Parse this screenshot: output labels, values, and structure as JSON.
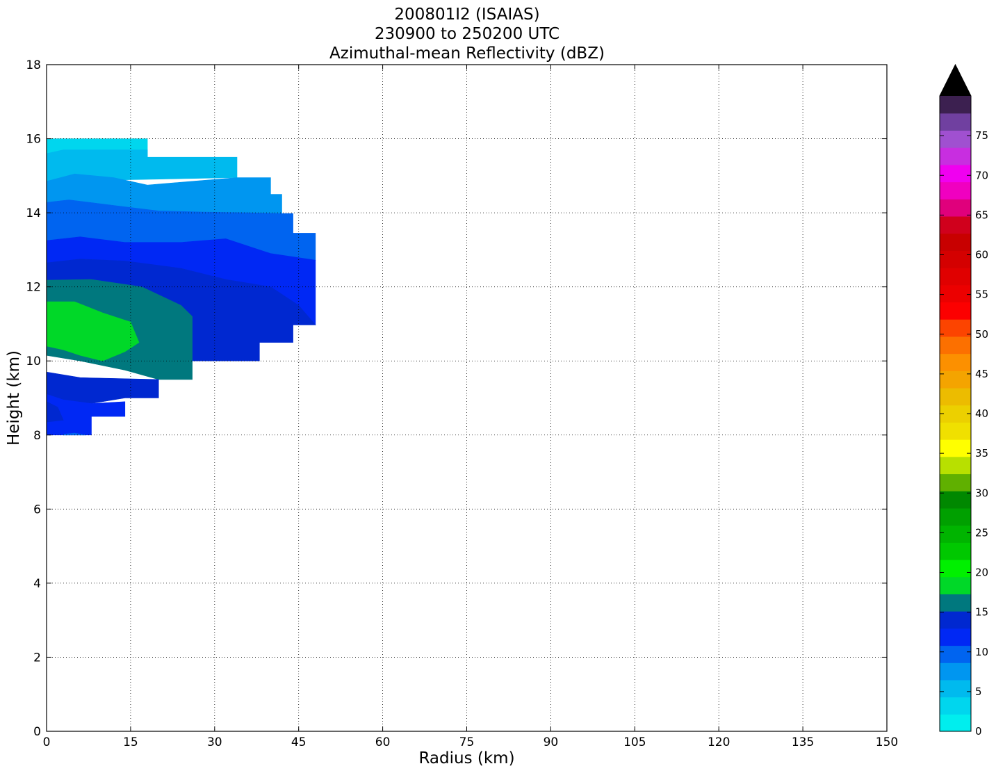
{
  "chart_data": {
    "type": "contour",
    "title_lines": [
      "200801I2 (ISAIAS)",
      "230900 to 250200 UTC",
      "Azimuthal-mean Reflectivity (dBZ)"
    ],
    "xlabel": "Radius (km)",
    "ylabel": "Height (km)",
    "xlim": [
      0,
      150
    ],
    "ylim": [
      0,
      18
    ],
    "xticks": [
      0,
      15,
      30,
      45,
      60,
      75,
      90,
      105,
      120,
      135,
      150
    ],
    "yticks": [
      0,
      2,
      4,
      6,
      8,
      10,
      12,
      14,
      16,
      18
    ],
    "grid": true,
    "colorbar": {
      "min": 0,
      "max": 80,
      "step": 2.5,
      "extend": "max",
      "extend_color": "#000000",
      "tick_labels": [
        "0",
        "5",
        "10",
        "15",
        "20",
        "25",
        "30",
        "35",
        "40",
        "45",
        "50",
        "55",
        "60",
        "65",
        "70",
        "75"
      ],
      "colors": [
        "#00eeee",
        "#00d6ee",
        "#00baee",
        "#0096f0",
        "#0064f0",
        "#0028f4",
        "#0028d0",
        "#00787e",
        "#00d828",
        "#00f000",
        "#00c800",
        "#00b400",
        "#00a000",
        "#008800",
        "#60b000",
        "#b8e000",
        "#ffff00",
        "#f0e000",
        "#ecd000",
        "#ecbc00",
        "#f4a400",
        "#fc9000",
        "#fc7000",
        "#fc4400",
        "#fc0000",
        "#ec0000",
        "#e00000",
        "#d40000",
        "#c80000",
        "#d0001c",
        "#e0007c",
        "#f000c0",
        "#f000f0",
        "#c82ee0",
        "#a050d0",
        "#7040a0",
        "#3c2050"
      ]
    },
    "contour_levels_dbz": [
      {
        "level": 2.5,
        "color": "#00d6ee",
        "polygon": [
          [
            0,
            16
          ],
          [
            18,
            16
          ],
          [
            18,
            15.5
          ],
          [
            0,
            15.5
          ]
        ]
      },
      {
        "level": 5,
        "color": "#00baee",
        "polygon": [
          [
            0,
            15.6
          ],
          [
            3,
            15.7
          ],
          [
            18,
            15.7
          ],
          [
            18,
            15.5
          ],
          [
            34,
            15.5
          ],
          [
            34,
            14.95
          ],
          [
            0,
            14.85
          ]
        ]
      },
      {
        "level": 7.5,
        "color": "#0096f0",
        "polygon": [
          [
            0,
            14.85
          ],
          [
            5,
            15.05
          ],
          [
            12,
            14.95
          ],
          [
            18,
            14.75
          ],
          [
            26,
            14.85
          ],
          [
            34,
            14.95
          ],
          [
            40,
            14.95
          ],
          [
            40,
            14.5
          ],
          [
            42,
            14.5
          ],
          [
            42,
            13.98
          ],
          [
            36,
            14.0
          ],
          [
            28,
            14.02
          ],
          [
            20,
            14.05
          ],
          [
            12,
            14.2
          ],
          [
            4,
            14.35
          ],
          [
            0,
            14.28
          ]
        ]
      },
      {
        "level": 10,
        "color": "#0064f0",
        "polygon": [
          [
            0,
            14.28
          ],
          [
            4,
            14.35
          ],
          [
            12,
            14.2
          ],
          [
            20,
            14.05
          ],
          [
            28,
            14.02
          ],
          [
            36,
            14.0
          ],
          [
            42,
            13.98
          ],
          [
            44,
            13.98
          ],
          [
            44,
            13.45
          ],
          [
            48,
            13.45
          ],
          [
            48,
            12.72
          ],
          [
            40,
            12.9
          ],
          [
            32,
            13.3
          ],
          [
            24,
            13.2
          ],
          [
            14,
            13.2
          ],
          [
            6,
            13.35
          ],
          [
            0,
            13.25
          ]
        ]
      },
      {
        "level": 12.5,
        "color": "#0028f4",
        "polygon": [
          [
            0,
            13.25
          ],
          [
            6,
            13.35
          ],
          [
            14,
            13.2
          ],
          [
            24,
            13.2
          ],
          [
            32,
            13.3
          ],
          [
            40,
            12.9
          ],
          [
            48,
            12.72
          ],
          [
            48,
            10.97
          ],
          [
            45,
            11.5
          ],
          [
            40,
            12.0
          ],
          [
            32,
            12.2
          ],
          [
            24,
            12.5
          ],
          [
            14,
            12.7
          ],
          [
            6,
            12.75
          ],
          [
            0,
            12.65
          ]
        ]
      },
      {
        "level": 15,
        "color": "#0028d0",
        "polygon": [
          [
            0,
            12.65
          ],
          [
            6,
            12.75
          ],
          [
            14,
            12.7
          ],
          [
            24,
            12.5
          ],
          [
            32,
            12.2
          ],
          [
            40,
            12.0
          ],
          [
            45,
            11.5
          ],
          [
            48,
            10.97
          ],
          [
            48,
            10.97
          ],
          [
            44,
            10.97
          ],
          [
            44,
            10.5
          ],
          [
            38,
            10.5
          ],
          [
            38,
            10.0
          ],
          [
            26,
            10.0
          ],
          [
            26,
            11.2
          ],
          [
            24,
            11.5
          ],
          [
            17,
            12.0
          ],
          [
            8,
            12.2
          ],
          [
            0,
            12.18
          ]
        ]
      },
      {
        "level": 17.5,
        "color": "#00787e",
        "polygon": [
          [
            0,
            12.18
          ],
          [
            8,
            12.2
          ],
          [
            17,
            12.0
          ],
          [
            24,
            11.5
          ],
          [
            26,
            11.2
          ],
          [
            26,
            9.5
          ],
          [
            20,
            9.5
          ],
          [
            14,
            9.75
          ],
          [
            6,
            10.0
          ],
          [
            0,
            10.15
          ]
        ]
      },
      {
        "level": 20,
        "color": "#00d828",
        "polygon": [
          [
            0,
            11.6
          ],
          [
            5,
            11.6
          ],
          [
            10,
            11.3
          ],
          [
            15,
            11.05
          ],
          [
            16.5,
            10.5
          ],
          [
            14,
            10.25
          ],
          [
            10,
            10.0
          ],
          [
            6,
            10.15
          ],
          [
            3,
            10.3
          ],
          [
            0,
            10.4
          ]
        ]
      },
      {
        "level": 12.5,
        "color": "#0028d0",
        "polygon": [
          [
            0,
            9.7
          ],
          [
            6,
            9.55
          ],
          [
            14,
            9.52
          ],
          [
            20,
            9.5
          ],
          [
            20,
            9.0
          ],
          [
            14,
            9.0
          ],
          [
            8,
            8.85
          ],
          [
            3,
            8.95
          ],
          [
            0,
            9.1
          ]
        ]
      },
      {
        "level": 10,
        "color": "#0028f4",
        "polygon": [
          [
            0,
            9.1
          ],
          [
            3,
            8.95
          ],
          [
            8,
            8.85
          ],
          [
            14,
            8.9
          ],
          [
            14,
            8.5
          ],
          [
            8,
            8.5
          ],
          [
            8,
            8.0
          ],
          [
            0,
            8.0
          ]
        ]
      },
      {
        "level": 15,
        "color": "#0028d0",
        "polygon": [
          [
            0,
            8.9
          ],
          [
            2,
            8.75
          ],
          [
            3,
            8.4
          ],
          [
            0,
            8.35
          ]
        ]
      },
      {
        "level": 7.5,
        "color": "#0064f0",
        "polygon": [
          [
            3,
            8.02
          ],
          [
            5,
            8.05
          ],
          [
            7,
            8.0
          ],
          [
            3,
            8.0
          ]
        ]
      }
    ]
  }
}
